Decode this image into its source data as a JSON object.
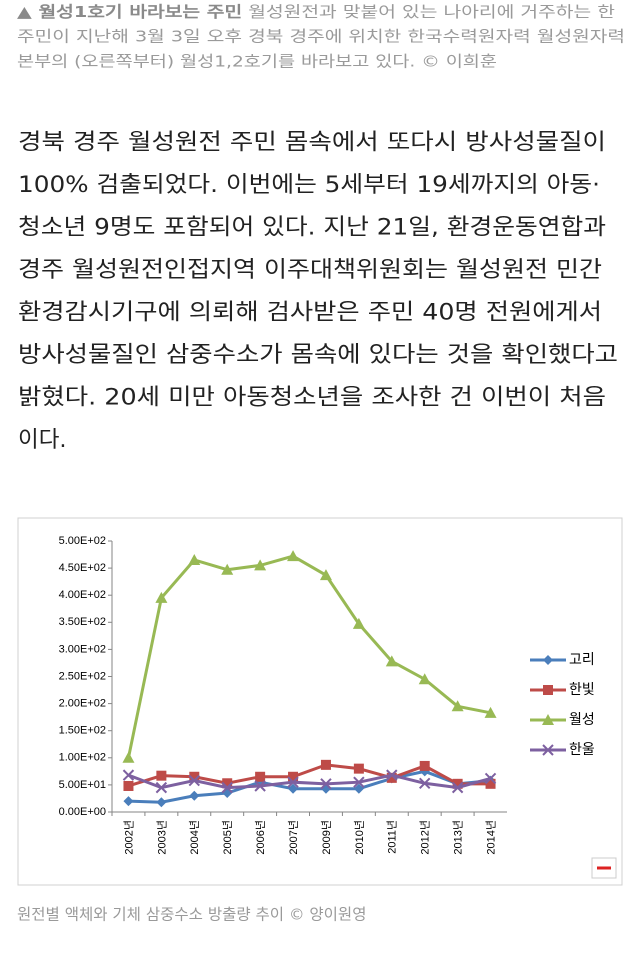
{
  "photo_caption": {
    "title": "▲ 월성1호기 바라보는 주민",
    "lines": [
      " 월성원전과 맞붙어 있는 나아리에 거주하는 한",
      "주민이 지난해 3월 3일 오후 경북 경주에 위치한 한국수력원자력 월성원자력",
      "본부의 (오른쪽부터) 월성1,2호기를 바라보고 있다. © 이희훈"
    ]
  },
  "article": {
    "lines": [
      "경북 경주 월성원전 주민 몸속에서 또다시 방사성물질이",
      "100% 검출되었다. 이번에는 5세부터 19세까지의 아동·",
      "청소년 9명도 포함되어 있다. 지난 21일, 환경운동연합과",
      "경주 월성원전인접지역 이주대책위원회는 월성원전 민간",
      "환경감시기구에 의뢰해 검사받은 주민 40명 전원에게서",
      "방사성물질인 삼중수소가 몸속에 있다는 것을 확인했다고",
      "밝혔다. 20세 미만 아동청소년을 조사한 건 이번이 처음",
      "이다."
    ]
  },
  "chart_data": {
    "type": "line",
    "categories": [
      "2002년",
      "2003년",
      "2004년",
      "2005년",
      "2006년",
      "2007년",
      "2009년",
      "2010년",
      "2011년",
      "2012년",
      "2013년",
      "2014년"
    ],
    "series": [
      {
        "name": "고리",
        "color": "#4a7ebb",
        "values": [
          20,
          18,
          30,
          35,
          55,
          43,
          43,
          43,
          62,
          75,
          52,
          58
        ]
      },
      {
        "name": "한빛",
        "color": "#be4b48",
        "values": [
          48,
          67,
          65,
          53,
          65,
          65,
          87,
          80,
          63,
          85,
          52,
          52
        ]
      },
      {
        "name": "월성",
        "color": "#98b954",
        "values": [
          100,
          395,
          465,
          447,
          455,
          472,
          437,
          347,
          278,
          245,
          195,
          183
        ]
      },
      {
        "name": "한울",
        "color": "#7d60a0",
        "values": [
          68,
          45,
          58,
          45,
          48,
          55,
          52,
          55,
          68,
          53,
          45,
          62
        ]
      }
    ],
    "ylim": [
      0,
      500
    ],
    "yticks": [
      {
        "value": 0,
        "label": "0.00E+00"
      },
      {
        "value": 50,
        "label": "5.00E+01"
      },
      {
        "value": 100,
        "label": "1.00E+02"
      },
      {
        "value": 150,
        "label": "1.50E+02"
      },
      {
        "value": 200,
        "label": "2.00E+02"
      },
      {
        "value": 250,
        "label": "2.50E+02"
      },
      {
        "value": 300,
        "label": "3.00E+02"
      },
      {
        "value": 350,
        "label": "3.50E+02"
      },
      {
        "value": 400,
        "label": "4.00E+02"
      },
      {
        "value": 450,
        "label": "4.50E+02"
      },
      {
        "value": 500,
        "label": "5.00E+02"
      }
    ],
    "grid": false,
    "legend": "right"
  },
  "chart_caption": "원전별 액체와 기체 삼중수소 방출량 추이 © 양이원영"
}
